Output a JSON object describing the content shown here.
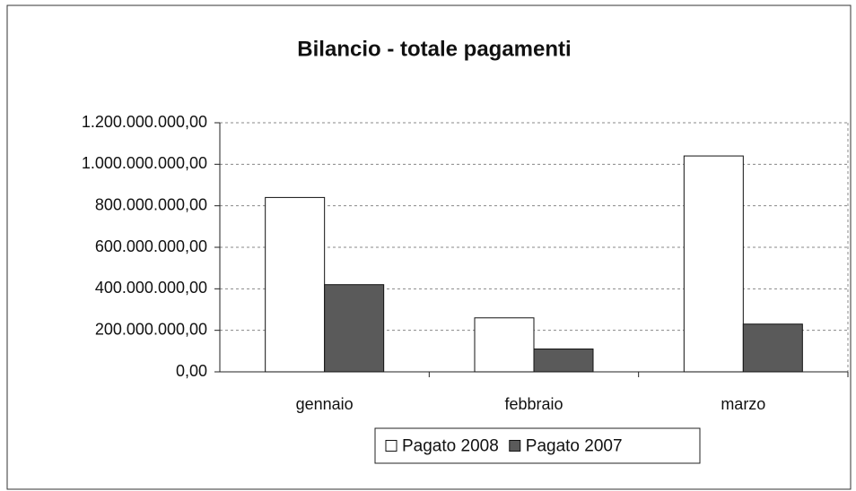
{
  "chart_data": {
    "type": "bar",
    "title": "Bilancio - totale pagamenti",
    "categories": [
      "gennaio",
      "febbraio",
      "marzo"
    ],
    "series": [
      {
        "name": "Pagato 2008",
        "color": "#ffffff",
        "values": [
          840000000,
          260000000,
          1040000000
        ]
      },
      {
        "name": "Pagato 2007",
        "color": "#5a5a5a",
        "values": [
          420000000,
          110000000,
          230000000
        ]
      }
    ],
    "ylim": [
      0,
      1200000000
    ],
    "yticks": [
      {
        "value": 0,
        "label": "0,00"
      },
      {
        "value": 200000000,
        "label": "200.000.000,00"
      },
      {
        "value": 400000000,
        "label": "400.000.000,00"
      },
      {
        "value": 600000000,
        "label": "600.000.000,00"
      },
      {
        "value": 800000000,
        "label": "800.000.000,00"
      },
      {
        "value": 1000000000,
        "label": "1.000.000.000,00"
      },
      {
        "value": 1200000000,
        "label": "1.200.000.000,00"
      }
    ],
    "grid": true,
    "legend": "bottom"
  }
}
